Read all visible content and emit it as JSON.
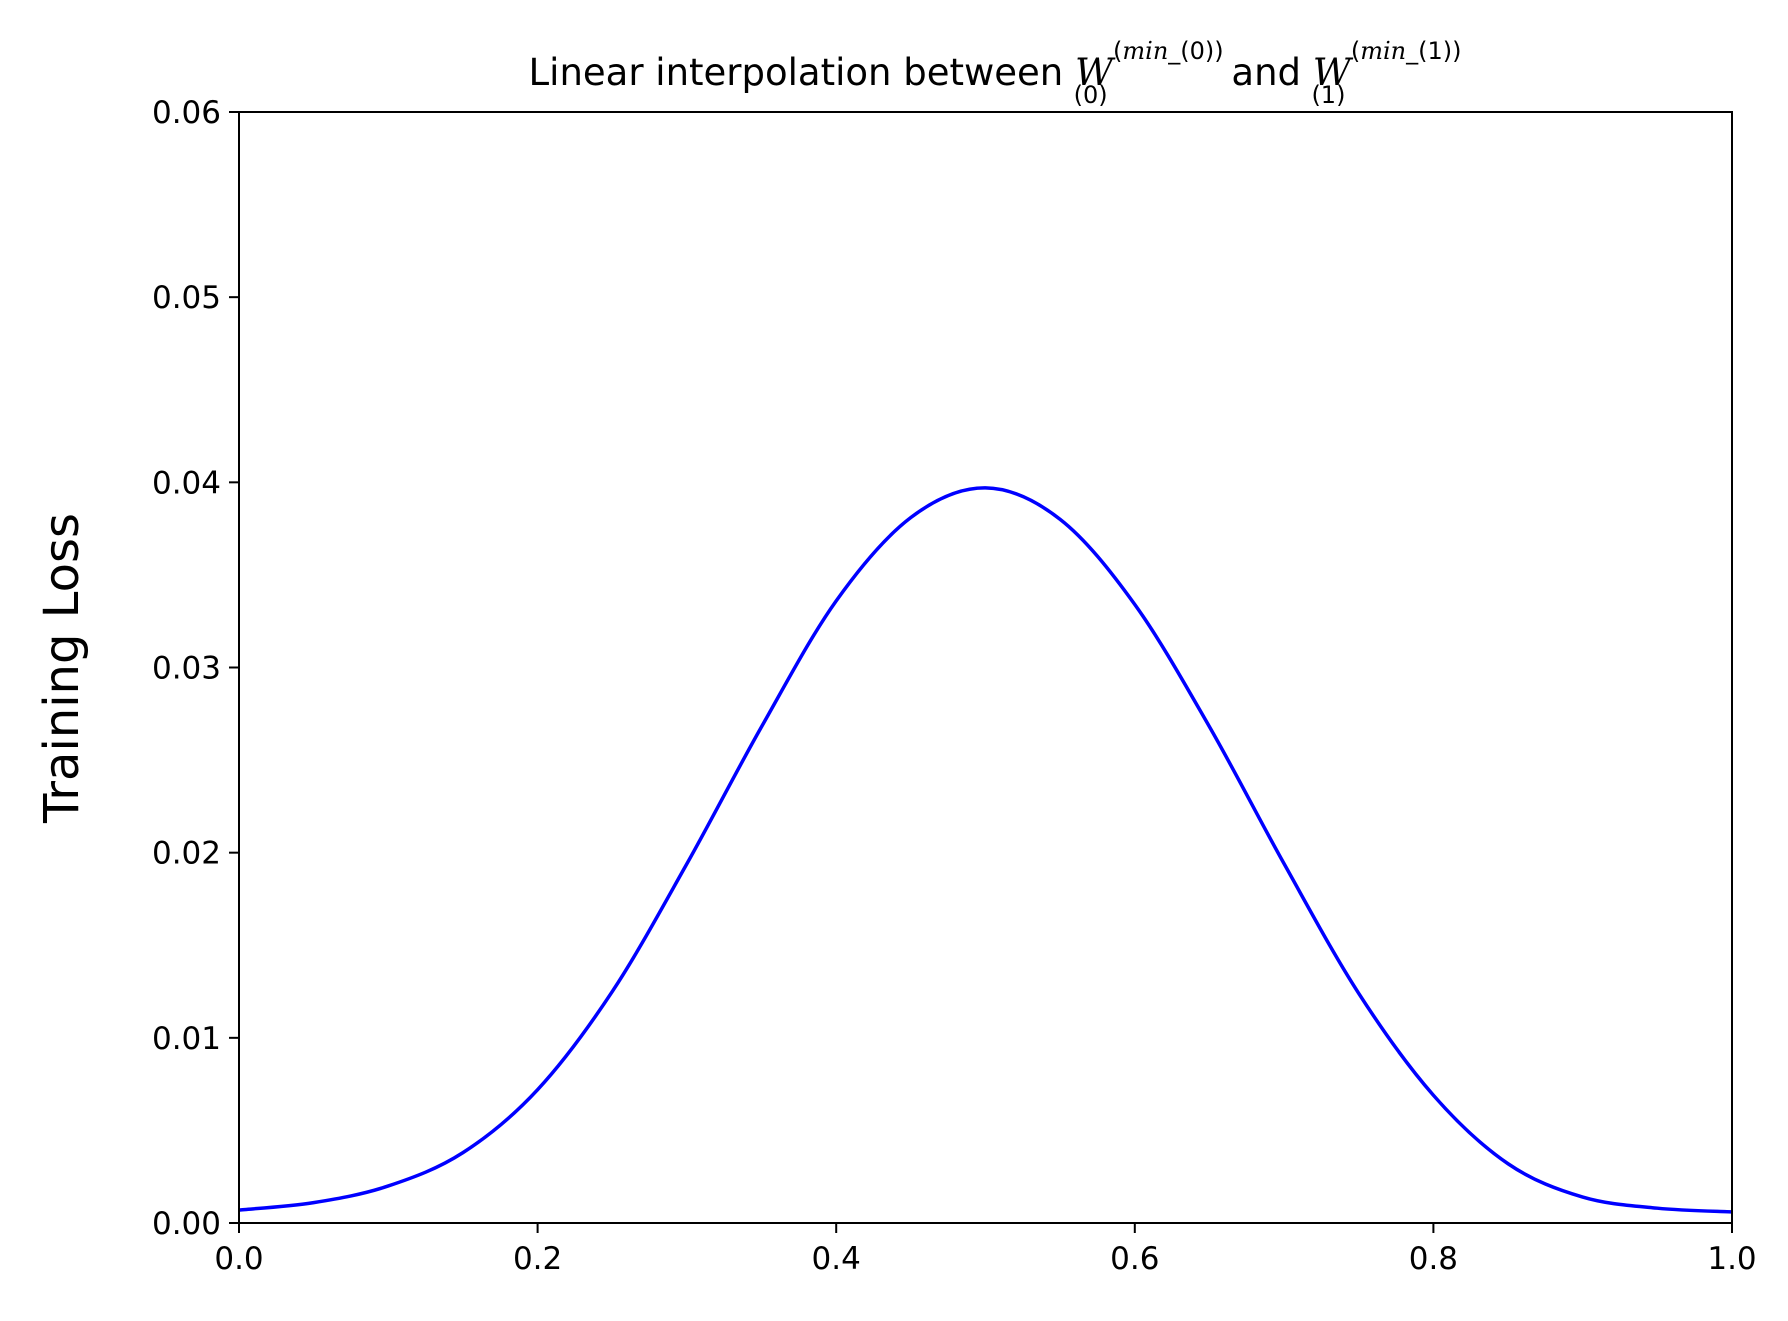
{
  "chart_data": {
    "type": "line",
    "title": {
      "prefix": "Linear interpolation between ",
      "w0": {
        "base": "W",
        "sub": "(0)",
        "sup_open": "(",
        "sup_min": "min",
        "sup_rest": "_(0))"
      },
      "middle": " and ",
      "w1": {
        "base": "W",
        "sub": "(1)",
        "sup_open": "(",
        "sup_min": "min",
        "sup_rest": "_(1))"
      }
    },
    "xlabel": "",
    "ylabel": "Training Loss",
    "xlim": [
      0.0,
      1.0
    ],
    "ylim": [
      0.0,
      0.06
    ],
    "xticks": [
      "0.0",
      "0.2",
      "0.4",
      "0.6",
      "0.8",
      "1.0"
    ],
    "yticks": [
      "0.00",
      "0.01",
      "0.02",
      "0.03",
      "0.04",
      "0.05",
      "0.06"
    ],
    "grid": false,
    "series": [
      {
        "color": "#0000ff",
        "x": [
          0.0,
          0.05,
          0.1,
          0.15,
          0.2,
          0.25,
          0.3,
          0.35,
          0.4,
          0.45,
          0.5,
          0.55,
          0.6,
          0.65,
          0.7,
          0.75,
          0.8,
          0.85,
          0.9,
          0.95,
          1.0
        ],
        "y": [
          0.0007,
          0.0011,
          0.002,
          0.0038,
          0.0072,
          0.0125,
          0.0194,
          0.0268,
          0.0336,
          0.0381,
          0.0397,
          0.038,
          0.0334,
          0.0268,
          0.0194,
          0.0124,
          0.0069,
          0.0032,
          0.0014,
          0.0008,
          0.0006
        ]
      }
    ]
  }
}
